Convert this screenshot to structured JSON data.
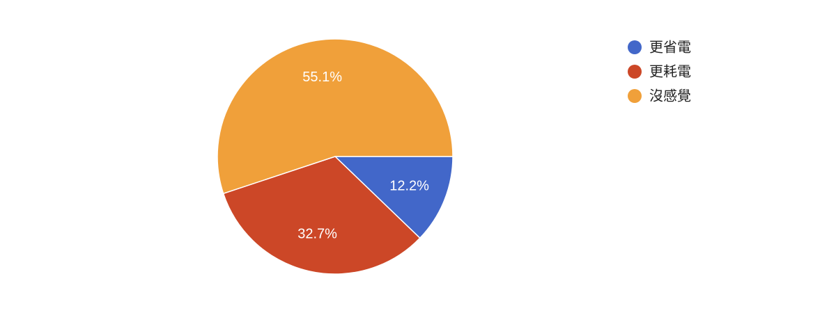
{
  "chart_data": {
    "type": "pie",
    "categories": [
      "更省電",
      "更耗電",
      "沒感覺"
    ],
    "values": [
      12.2,
      32.7,
      55.1
    ],
    "value_labels": [
      "12.2%",
      "32.7%",
      "55.1%"
    ],
    "colors": [
      "#4267c9",
      "#cc4727",
      "#f0a03a"
    ],
    "legend": "right"
  }
}
